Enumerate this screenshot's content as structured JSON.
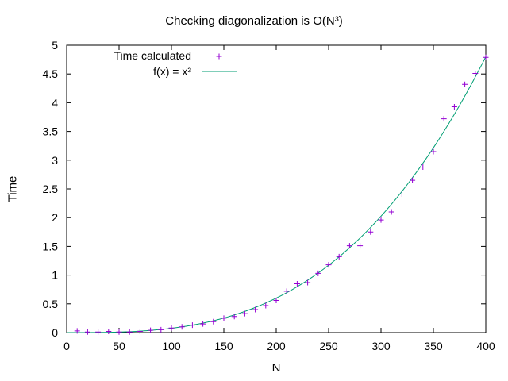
{
  "chart_data": {
    "type": "scatter",
    "title": "Checking diagonalization is O(N³)",
    "xlabel": "N",
    "ylabel": "Time",
    "xlim": [
      0,
      400
    ],
    "ylim": [
      0,
      5
    ],
    "xticks": [
      "0",
      "50",
      "100",
      "150",
      "200",
      "250",
      "300",
      "350",
      "400"
    ],
    "yticks": [
      "0",
      "0.5",
      "1",
      "1.5",
      "2",
      "2.5",
      "3",
      "3.5",
      "4",
      "4.5",
      "5"
    ],
    "grid": false,
    "legend_position": "top-left",
    "series": [
      {
        "name": "Time calculated",
        "type": "scatter",
        "marker": "+",
        "color": "#9400d3",
        "x": [
          10,
          20,
          30,
          40,
          50,
          60,
          70,
          80,
          90,
          100,
          110,
          120,
          130,
          140,
          150,
          160,
          170,
          180,
          190,
          200,
          210,
          220,
          230,
          240,
          250,
          260,
          270,
          280,
          290,
          300,
          310,
          320,
          330,
          340,
          350,
          360,
          370,
          380,
          390,
          400
        ],
        "y": [
          0.03,
          0.01,
          0.01,
          0.02,
          0.01,
          0.01,
          0.02,
          0.04,
          0.05,
          0.08,
          0.1,
          0.13,
          0.15,
          0.19,
          0.25,
          0.28,
          0.33,
          0.4,
          0.47,
          0.56,
          0.72,
          0.85,
          0.87,
          1.03,
          1.18,
          1.32,
          1.51,
          1.51,
          1.75,
          1.96,
          2.1,
          2.41,
          2.65,
          2.88,
          3.15,
          3.72,
          3.93,
          4.32,
          4.51,
          4.79
        ]
      },
      {
        "name": "f(x) = x³",
        "type": "line",
        "color": "#009e73",
        "function": "x^3",
        "scale": 7.5e-08
      }
    ]
  }
}
